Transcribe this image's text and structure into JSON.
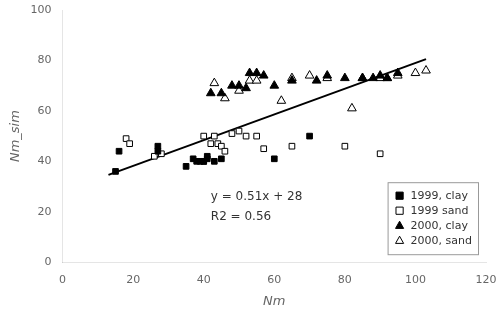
{
  "chart_data": {
    "type": "scatter",
    "xlabel": "Nm",
    "ylabel": "Nm_sim",
    "xlim": [
      0,
      120
    ],
    "ylim": [
      0,
      100
    ],
    "xticks": [
      0,
      20,
      40,
      60,
      80,
      100,
      120
    ],
    "yticks": [
      0,
      20,
      40,
      60,
      80,
      100
    ],
    "grid": false,
    "legend": "lower right",
    "annotations": [
      "y = 0.51x + 28",
      "R2 = 0.56"
    ],
    "series": [
      {
        "type": "line",
        "color": "black",
        "x": [
          13,
          103
        ],
        "values": [
          34.63,
          80.53
        ]
      },
      {
        "name": "1999, clay",
        "type": "scatter",
        "marker": "filled square",
        "color": "black",
        "x": [
          15,
          16,
          27,
          27,
          35,
          37,
          38,
          39,
          40,
          40,
          41,
          41,
          43,
          45,
          60,
          70
        ],
        "values": [
          36,
          44,
          44,
          46,
          38,
          41,
          40,
          40,
          40,
          40,
          41,
          42,
          40,
          41,
          41,
          50
        ]
      },
      {
        "name": "1999 sand",
        "type": "scatter",
        "marker": "open square",
        "color": "black",
        "x": [
          18,
          19,
          26,
          28,
          40,
          42,
          43,
          44,
          45,
          46,
          48,
          50,
          52,
          55,
          57,
          65,
          80,
          90
        ],
        "values": [
          49,
          47,
          42,
          43,
          50,
          47,
          50,
          47,
          46,
          44,
          51,
          52,
          50,
          50,
          45,
          46,
          46,
          43
        ]
      },
      {
        "name": "2000, clay",
        "type": "scatter",
        "marker": "filled triangle",
        "color": "black",
        "x": [
          42,
          45,
          48,
          50,
          52,
          53,
          55,
          57,
          60,
          65,
          72,
          75,
          80,
          85,
          88,
          90,
          92,
          95
        ],
        "values": [
          67,
          67,
          70,
          70,
          69,
          75,
          75,
          74,
          70,
          72,
          72,
          74,
          73,
          73,
          73,
          74,
          73,
          75
        ]
      },
      {
        "name": "2000, sand",
        "type": "scatter",
        "marker": "open triangle",
        "color": "black",
        "x": [
          43,
          46,
          50,
          53,
          55,
          62,
          65,
          70,
          75,
          82,
          85,
          90,
          92,
          95,
          100,
          103
        ],
        "values": [
          71,
          65,
          68,
          72,
          72,
          64,
          73,
          74,
          73,
          61,
          73,
          73,
          73,
          74,
          75,
          76
        ]
      }
    ]
  }
}
